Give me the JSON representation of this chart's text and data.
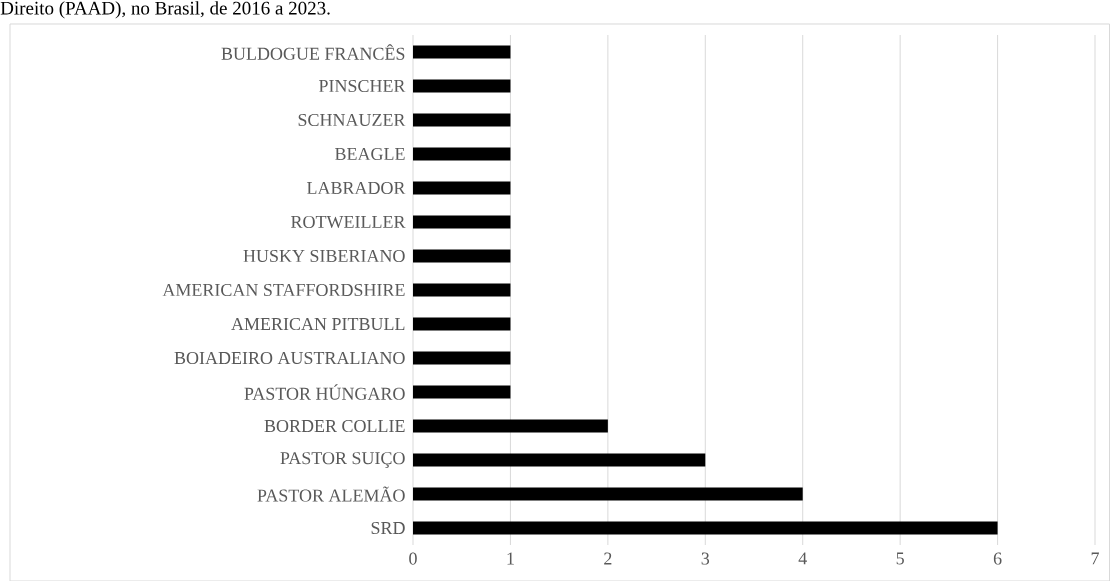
{
  "chart_data": {
    "type": "bar",
    "orientation": "horizontal",
    "annotations": [
      "Direito (PAAD), no Brasil, de 2016 a 2023."
    ],
    "categories": [
      "BULDOGUE FRANCÊS",
      "PINSCHER",
      "SCHNAUZER",
      "BEAGLE",
      "LABRADOR",
      "ROTWEILLER",
      "HUSKY SIBERIANO",
      "AMERICAN STAFFORDSHIRE",
      "AMERICAN PITBULL",
      "BOIADEIRO AUSTRALIANO",
      "PASTOR HÚNGARO",
      "BORDER COLLIE",
      "PASTOR SUIÇO",
      "PASTOR ALEMÃO",
      "SRD"
    ],
    "values": [
      1,
      1,
      1,
      1,
      1,
      1,
      1,
      1,
      1,
      1,
      1,
      2,
      3,
      4,
      6
    ],
    "color": "#000000",
    "xlim": [
      0,
      7
    ],
    "xticks": [
      0,
      1,
      2,
      3,
      4,
      5,
      6,
      7
    ],
    "grid": "x"
  }
}
